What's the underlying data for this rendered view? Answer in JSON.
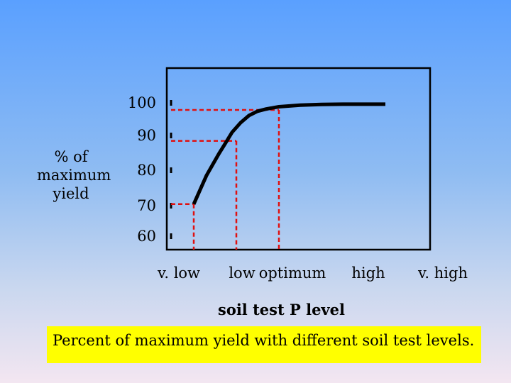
{
  "chart_data": {
    "type": "line",
    "title": "",
    "ylabel_lines": [
      "% of",
      "maximum",
      "yield"
    ],
    "xlabel": "soil test P level",
    "y_ticks": [
      "100",
      "90",
      "80",
      "70",
      "60"
    ],
    "y_tick_values": [
      100,
      90,
      80,
      70,
      60
    ],
    "ylim": [
      60,
      100
    ],
    "categories": [
      "v. low",
      "low",
      "optimum",
      "high",
      "v. high"
    ],
    "curve": {
      "x": [
        0.0,
        0.15,
        0.3,
        0.45,
        0.6,
        0.75,
        0.9,
        1.1,
        1.3,
        1.5,
        1.7,
        2.0,
        2.5,
        3.0,
        3.5,
        4.0,
        4.5
      ],
      "y": [
        70.5,
        75.0,
        79.5,
        83.0,
        86.5,
        89.7,
        93.0,
        96.0,
        98.3,
        99.6,
        100.3,
        101.0,
        101.5,
        101.7,
        101.8,
        101.8,
        101.8
      ]
    },
    "reference_points": [
      {
        "x": 0.0,
        "y": 70.5
      },
      {
        "x": 1.0,
        "y": 90.3
      },
      {
        "x": 2.0,
        "y": 100.0
      }
    ],
    "grid": false,
    "legend": "none"
  },
  "caption": "Percent of  maximum yield with different soil test levels."
}
